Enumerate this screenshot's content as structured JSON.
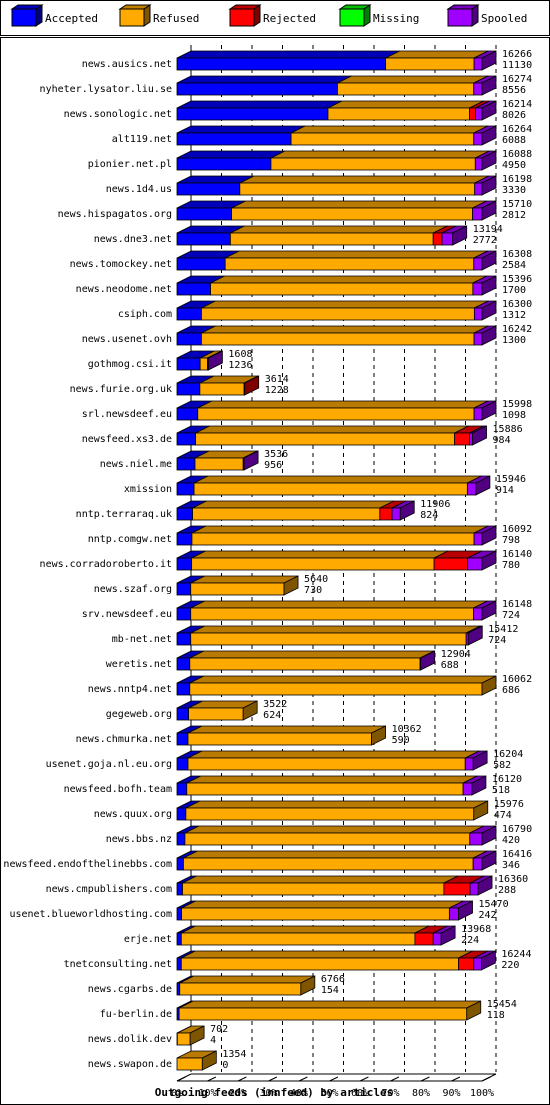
{
  "chart_data": {
    "type": "bar",
    "orientation": "horizontal",
    "stacked": true,
    "style": "3d",
    "legend": {
      "placement": "top",
      "items": [
        {
          "name": "Accepted",
          "color": "#0000ff"
        },
        {
          "name": "Refused",
          "color": "#ffaa00"
        },
        {
          "name": "Rejected",
          "color": "#ff0000"
        },
        {
          "name": "Missing",
          "color": "#00ff00"
        },
        {
          "name": "Spooled",
          "color": "#a000ff"
        }
      ]
    },
    "xlabel": "Outgoing feeds (innfeed) by articles",
    "xlim": [
      0,
      100
    ],
    "ticks": [
      "0%",
      "10%",
      "20%",
      "30%",
      "40%",
      "50%",
      "60%",
      "70%",
      "80%",
      "90%",
      "100%"
    ],
    "grid": true,
    "series_order": [
      "Accepted",
      "Refused",
      "Rejected",
      "Missing",
      "Spooled"
    ],
    "rows": [
      {
        "label": "news.ausics.net",
        "total": "16266",
        "accepted_count": "11130",
        "pct": [
          68.4,
          29.0,
          0,
          0,
          2.6
        ]
      },
      {
        "label": "nyheter.lysator.liu.se",
        "total": "16274",
        "accepted_count": "8556",
        "pct": [
          52.6,
          44.7,
          0,
          0,
          2.7
        ]
      },
      {
        "label": "news.sonologic.net",
        "total": "16214",
        "accepted_count": "8026",
        "pct": [
          49.5,
          46.4,
          2.0,
          0,
          2.1
        ]
      },
      {
        "label": "alt119.net",
        "total": "16264",
        "accepted_count": "6088",
        "pct": [
          37.4,
          59.9,
          0,
          0,
          2.7
        ]
      },
      {
        "label": "pionier.net.pl",
        "total": "16088",
        "accepted_count": "4950",
        "pct": [
          30.8,
          67.0,
          0,
          0,
          2.2
        ]
      },
      {
        "label": "news.1d4.us",
        "total": "16198",
        "accepted_count": "3330",
        "pct": [
          20.6,
          77.0,
          0,
          0,
          2.4
        ]
      },
      {
        "label": "news.hispagatos.org",
        "total": "15710",
        "accepted_count": "2812",
        "pct": [
          17.9,
          79.0,
          0,
          0,
          3.1
        ]
      },
      {
        "label": "news.dne3.net",
        "total": "13194",
        "accepted_count": "2772",
        "pct": [
          17.5,
          66.5,
          2.9,
          0,
          3.5
        ]
      },
      {
        "label": "news.tomockey.net",
        "total": "16308",
        "accepted_count": "2584",
        "pct": [
          15.8,
          81.5,
          0,
          0,
          2.7
        ]
      },
      {
        "label": "news.neodome.net",
        "total": "15396",
        "accepted_count": "1700",
        "pct": [
          11.0,
          86.0,
          0,
          0,
          3.0
        ]
      },
      {
        "label": "csiph.com",
        "total": "16300",
        "accepted_count": "1312",
        "pct": [
          8.0,
          89.5,
          0,
          0,
          2.5
        ]
      },
      {
        "label": "news.usenet.ovh",
        "total": "16242",
        "accepted_count": "1300",
        "pct": [
          8.0,
          89.4,
          0,
          0,
          2.6
        ]
      },
      {
        "label": "gothmog.csi.it",
        "total": "1608",
        "accepted_count": "1236",
        "pct": [
          7.6,
          2.4,
          0,
          0,
          0.3
        ]
      },
      {
        "label": "news.furie.org.uk",
        "total": "3614",
        "accepted_count": "1228",
        "pct": [
          7.5,
          14.5,
          0.2,
          0,
          0
        ]
      },
      {
        "label": "srl.newsdeef.eu",
        "total": "15998",
        "accepted_count": "1098",
        "pct": [
          6.8,
          90.6,
          0,
          0,
          2.6
        ]
      },
      {
        "label": "newsfeed.xs3.de",
        "total": "15886",
        "accepted_count": "984",
        "pct": [
          6.1,
          84.9,
          4.9,
          0,
          1.0
        ]
      },
      {
        "label": "news.niel.me",
        "total": "3536",
        "accepted_count": "956",
        "pct": [
          5.9,
          15.8,
          0,
          0,
          0.3
        ]
      },
      {
        "label": "xmission",
        "total": "15946",
        "accepted_count": "914",
        "pct": [
          5.6,
          89.6,
          0,
          0,
          2.8
        ]
      },
      {
        "label": "nntp.terraraq.uk",
        "total": "11906",
        "accepted_count": "824",
        "pct": [
          5.1,
          61.4,
          4.0,
          0,
          2.7
        ]
      },
      {
        "label": "nntp.comgw.net",
        "total": "16092",
        "accepted_count": "798",
        "pct": [
          4.9,
          92.5,
          0,
          0,
          2.6
        ]
      },
      {
        "label": "news.corradoroberto.it",
        "total": "16140",
        "accepted_count": "780",
        "pct": [
          4.8,
          79.5,
          11.0,
          0,
          4.7
        ]
      },
      {
        "label": "news.szaf.org",
        "total": "5640",
        "accepted_count": "730",
        "pct": [
          4.5,
          30.6,
          0,
          0,
          0
        ]
      },
      {
        "label": "srv.newsdeef.eu",
        "total": "16148",
        "accepted_count": "724",
        "pct": [
          4.5,
          92.7,
          0,
          0,
          2.8
        ]
      },
      {
        "label": "mb-net.net",
        "total": "15412",
        "accepted_count": "724",
        "pct": [
          4.5,
          90.3,
          0,
          0,
          0.7
        ]
      },
      {
        "label": "weretis.net",
        "total": "12904",
        "accepted_count": "688",
        "pct": [
          4.2,
          75.5,
          0,
          0,
          0.2
        ]
      },
      {
        "label": "news.nntp4.net",
        "total": "16062",
        "accepted_count": "686",
        "pct": [
          4.2,
          95.8,
          0,
          0,
          0
        ]
      },
      {
        "label": "gegeweb.org",
        "total": "3522",
        "accepted_count": "624",
        "pct": [
          3.8,
          17.9,
          0,
          0,
          0
        ]
      },
      {
        "label": "news.chmurka.net",
        "total": "10362",
        "accepted_count": "590",
        "pct": [
          3.6,
          60.2,
          0,
          0,
          0
        ]
      },
      {
        "label": "usenet.goja.nl.eu.org",
        "total": "16204",
        "accepted_count": "582",
        "pct": [
          3.6,
          90.9,
          0,
          0,
          2.6
        ]
      },
      {
        "label": "newsfeed.bofh.team",
        "total": "16120",
        "accepted_count": "518",
        "pct": [
          3.2,
          90.6,
          0,
          0,
          2.9
        ]
      },
      {
        "label": "news.quux.org",
        "total": "15976",
        "accepted_count": "474",
        "pct": [
          2.9,
          94.4,
          0,
          0,
          0
        ]
      },
      {
        "label": "news.bbs.nz",
        "total": "16790",
        "accepted_count": "420",
        "pct": [
          2.6,
          93.4,
          0,
          0,
          4.0
        ]
      },
      {
        "label": "newsfeed.endofthelinebbs.com",
        "total": "16416",
        "accepted_count": "346",
        "pct": [
          2.1,
          95.0,
          0,
          0,
          2.9
        ]
      },
      {
        "label": "news.cmpublishers.com",
        "total": "16360",
        "accepted_count": "288",
        "pct": [
          1.8,
          85.7,
          8.6,
          0,
          2.6
        ]
      },
      {
        "label": "usenet.blueworldhosting.com",
        "total": "15470",
        "accepted_count": "242",
        "pct": [
          1.5,
          87.8,
          0,
          0,
          3.0
        ]
      },
      {
        "label": "erje.net",
        "total": "13968",
        "accepted_count": "224",
        "pct": [
          1.4,
          76.6,
          6.0,
          0,
          2.6
        ]
      },
      {
        "label": "tnetconsulting.net",
        "total": "16244",
        "accepted_count": "220",
        "pct": [
          1.4,
          90.9,
          5.0,
          0,
          2.5
        ]
      },
      {
        "label": "news.cgarbs.de",
        "total": "6766",
        "accepted_count": "154",
        "pct": [
          0.9,
          39.7,
          0,
          0,
          0
        ]
      },
      {
        "label": "fu-berlin.de",
        "total": "15454",
        "accepted_count": "118",
        "pct": [
          0.7,
          94.3,
          0,
          0,
          0
        ]
      },
      {
        "label": "news.dolik.dev",
        "total": "702",
        "accepted_count": "4",
        "pct": [
          0.1,
          4.2,
          0,
          0,
          0
        ]
      },
      {
        "label": "news.swapon.de",
        "total": "1354",
        "accepted_count": "0",
        "pct": [
          0,
          8.3,
          0,
          0,
          0
        ]
      }
    ]
  }
}
